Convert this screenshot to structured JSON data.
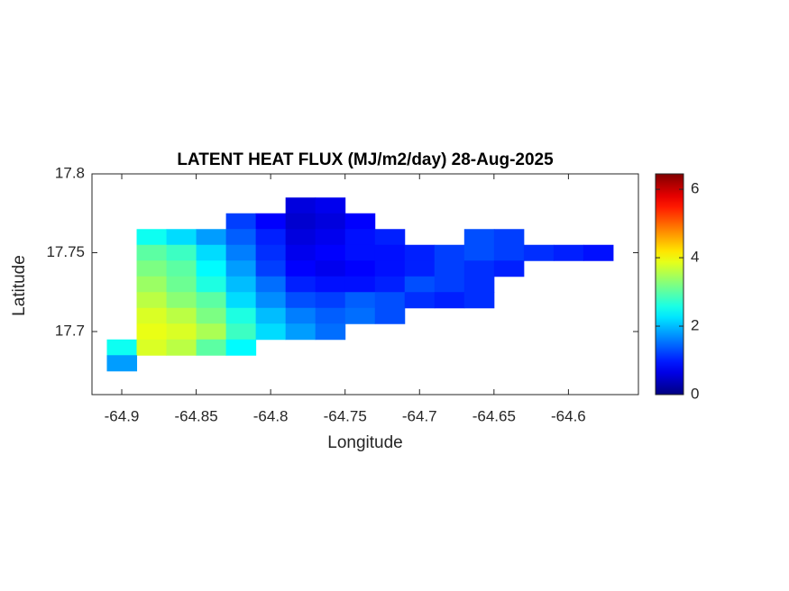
{
  "chart_data": {
    "type": "heatmap",
    "title": "LATENT HEAT FLUX (MJ/m2/day) 28-Aug-2025",
    "xlabel": "Longitude",
    "ylabel": "Latitude",
    "x": [
      -64.9,
      -64.88,
      -64.86,
      -64.84,
      -64.82,
      -64.8,
      -64.78,
      -64.76,
      -64.74,
      -64.72,
      -64.7,
      -64.68,
      -64.66,
      -64.64,
      -64.62,
      -64.6,
      -64.58
    ],
    "y": [
      17.78,
      17.77,
      17.76,
      17.75,
      17.74,
      17.73,
      17.72,
      17.71,
      17.7,
      17.69,
      17.68
    ],
    "z": [
      [
        null,
        null,
        null,
        null,
        null,
        null,
        0.6,
        0.7,
        null,
        null,
        null,
        null,
        null,
        null,
        null,
        null,
        null
      ],
      [
        null,
        null,
        null,
        null,
        1.2,
        0.8,
        0.5,
        0.6,
        0.8,
        null,
        null,
        null,
        null,
        null,
        null,
        null,
        null
      ],
      [
        null,
        2.5,
        2.2,
        1.8,
        1.4,
        1.0,
        0.6,
        0.7,
        0.9,
        1.0,
        null,
        null,
        1.3,
        1.2,
        null,
        null,
        null
      ],
      [
        null,
        3.0,
        2.8,
        2.2,
        1.6,
        1.1,
        0.7,
        0.8,
        0.9,
        0.9,
        1.0,
        1.2,
        1.3,
        1.2,
        1.1,
        1.0,
        0.9
      ],
      [
        null,
        3.2,
        3.0,
        2.4,
        1.8,
        1.2,
        0.8,
        0.7,
        0.8,
        0.9,
        1.0,
        1.2,
        1.1,
        1.0,
        null,
        null,
        null
      ],
      [
        null,
        3.4,
        3.1,
        2.6,
        2.0,
        1.5,
        1.0,
        0.9,
        0.9,
        1.0,
        1.3,
        1.2,
        1.1,
        null,
        null,
        null,
        null
      ],
      [
        null,
        3.6,
        3.3,
        3.0,
        2.2,
        1.7,
        1.3,
        1.2,
        1.4,
        1.3,
        1.1,
        1.0,
        1.1,
        null,
        null,
        null,
        null
      ],
      [
        null,
        3.8,
        3.6,
        3.2,
        2.6,
        2.0,
        1.6,
        1.4,
        1.5,
        1.3,
        null,
        null,
        null,
        null,
        null,
        null,
        null
      ],
      [
        null,
        3.9,
        3.8,
        3.5,
        2.8,
        2.2,
        1.8,
        1.5,
        null,
        null,
        null,
        null,
        null,
        null,
        null,
        null,
        null
      ],
      [
        2.5,
        3.8,
        3.6,
        3.0,
        2.4,
        null,
        null,
        null,
        null,
        null,
        null,
        null,
        null,
        null,
        null,
        null,
        null
      ],
      [
        1.8,
        null,
        null,
        null,
        null,
        null,
        null,
        null,
        null,
        null,
        null,
        null,
        null,
        null,
        null,
        null,
        null
      ]
    ],
    "xlim": [
      -64.92,
      -64.553
    ],
    "ylim": [
      17.66,
      17.8
    ],
    "xticks": [
      -64.9,
      -64.85,
      -64.8,
      -64.75,
      -64.7,
      -64.65,
      -64.6
    ],
    "yticks": [
      17.7,
      17.75,
      17.8
    ],
    "colormap": "jet",
    "clim": [
      0,
      6.45
    ],
    "cticks": [
      0,
      2,
      4,
      6
    ]
  }
}
